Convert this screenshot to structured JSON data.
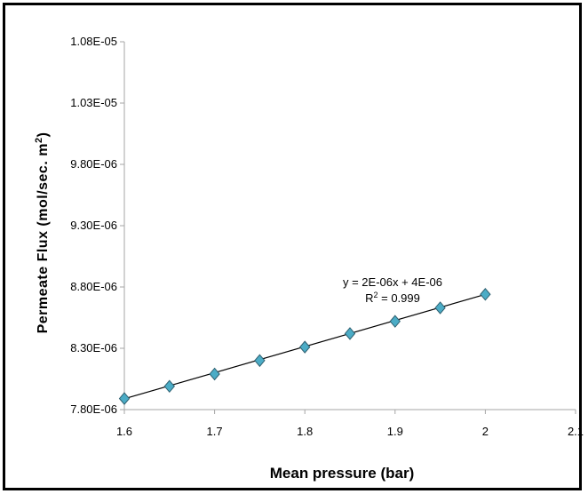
{
  "chart_data": {
    "type": "scatter",
    "title": "",
    "xlabel": "Mean pressure (bar)",
    "ylabel": "Permeate Flux (mol/sec. m",
    "ylabel_sup": "2",
    "ylabel_close": ")",
    "xlim": [
      1.6,
      2.1
    ],
    "ylim": [
      7.8e-06,
      1.08e-05
    ],
    "x_ticks": [
      1.6,
      1.7,
      1.8,
      1.9,
      2,
      2.1
    ],
    "x_tick_labels": [
      "1.6",
      "1.7",
      "1.8",
      "1.9",
      "2",
      "2.1"
    ],
    "y_ticks": [
      7.8e-06,
      8.3e-06,
      8.8e-06,
      9.3e-06,
      9.8e-06,
      1.03e-05,
      1.08e-05
    ],
    "y_tick_labels": [
      "7.80E-06",
      "8.30E-06",
      "8.80E-06",
      "9.30E-06",
      "9.80E-06",
      "1.03E-05",
      "1.08E-05"
    ],
    "grid": false,
    "series": [
      {
        "marker": "diamond",
        "color": "#4bacc6",
        "x": [
          1.6,
          1.65,
          1.7,
          1.75,
          1.8,
          1.85,
          1.9,
          1.95,
          2.0
        ],
        "y": [
          7.89e-06,
          7.99e-06,
          8.09e-06,
          8.2e-06,
          8.31e-06,
          8.42e-06,
          8.52e-06,
          8.63e-06,
          8.74e-06
        ]
      }
    ],
    "trendline": {
      "type": "linear",
      "slope": 2.13e-06,
      "intercept": 4.48e-06,
      "equation": "y = 2E-06x + 4E-06",
      "r2_prefix": "R",
      "r2_sup": "2",
      "r2_value": " = 0.999"
    }
  }
}
